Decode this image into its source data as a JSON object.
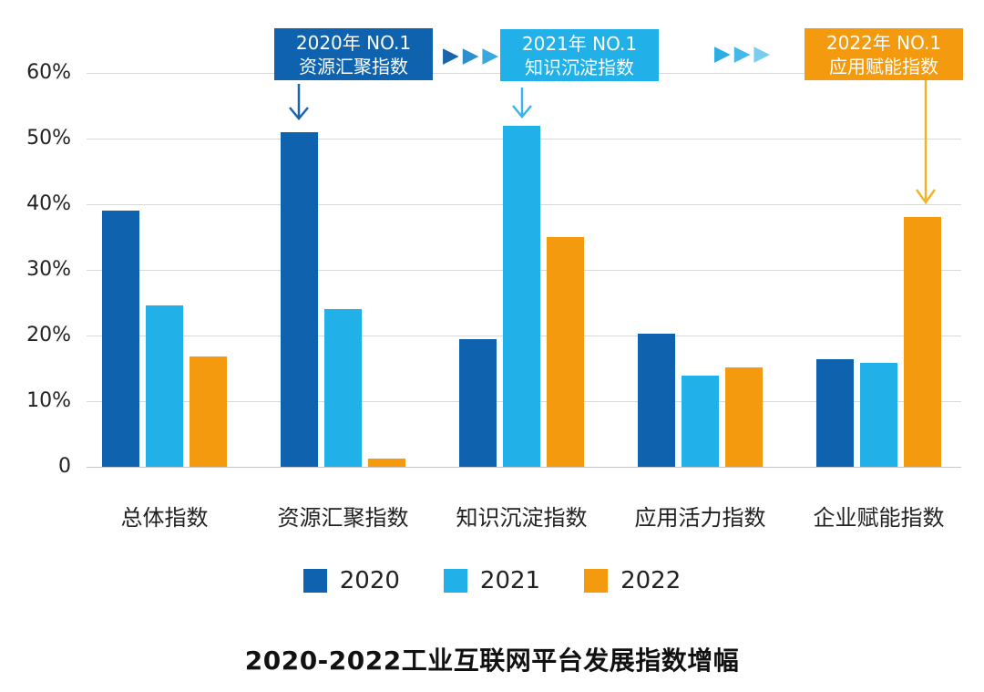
{
  "title": "2020-2022工业互联网平台发展指数增幅",
  "colors": {
    "series_2020": "#0f62ad",
    "series_2021": "#22b0e8",
    "series_2022": "#f39a0f",
    "grid": "#d9d9d9",
    "text": "#1a1a1a"
  },
  "annotations": [
    {
      "line1": "2020年  NO.1",
      "line2": "资源汇聚指数",
      "color": "#0f62ad",
      "arrow_color": "#1a64ad"
    },
    {
      "line1": "2021年  NO.1",
      "line2": "知识沉淀指数",
      "color": "#22b0e8",
      "arrow_color": "#3fb3e8"
    },
    {
      "line1": "2022年  NO.1",
      "line2": "应用赋能指数",
      "color": "#f39a0f",
      "arrow_color": "#f0b429"
    }
  ],
  "chevrons": {
    "glyph": "▶",
    "sets": [
      {
        "colors": [
          "#1a64ad",
          "#2e8fcd",
          "#3aa7df"
        ]
      },
      {
        "colors": [
          "#2bace3",
          "#44b9e9",
          "#79cdf0"
        ]
      }
    ]
  },
  "chart_data": {
    "type": "bar",
    "categories": [
      "总体指数",
      "资源汇聚指数",
      "知识沉淀指数",
      "应用活力指数",
      "企业赋能指数"
    ],
    "series": [
      {
        "name": "2020",
        "color": "#0f62ad",
        "values": [
          39.0,
          51.0,
          19.4,
          20.3,
          16.4
        ]
      },
      {
        "name": "2021",
        "color": "#22b0e8",
        "values": [
          24.6,
          24.0,
          52.0,
          13.9,
          15.9
        ]
      },
      {
        "name": "2022",
        "color": "#f39a0f",
        "values": [
          16.8,
          1.3,
          35.0,
          15.1,
          38.0
        ]
      }
    ],
    "y_ticks": [
      "60%",
      "50%",
      "40%",
      "30%",
      "20%",
      "10%",
      "0"
    ],
    "ylim": [
      0,
      60
    ],
    "grid": true,
    "legend_position": "bottom",
    "title": "2020-2022工业互联网平台发展指数增幅"
  }
}
